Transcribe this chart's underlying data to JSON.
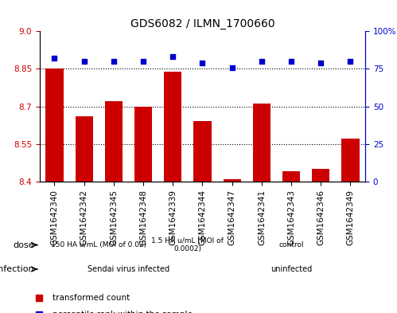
{
  "title": "GDS6082 / ILMN_1700660",
  "samples": [
    "GSM1642340",
    "GSM1642342",
    "GSM1642345",
    "GSM1642348",
    "GSM1642339",
    "GSM1642344",
    "GSM1642347",
    "GSM1642341",
    "GSM1642343",
    "GSM1642346",
    "GSM1642349"
  ],
  "bar_values": [
    8.85,
    8.66,
    8.72,
    8.7,
    8.84,
    8.64,
    8.41,
    8.71,
    8.44,
    8.45,
    8.57
  ],
  "percentile_values": [
    82,
    80,
    80,
    80,
    83,
    79,
    76,
    80,
    80,
    79,
    80
  ],
  "bar_color": "#cc0000",
  "dot_color": "#0000cc",
  "ylim_left": [
    8.4,
    9.0
  ],
  "ylim_right": [
    0,
    100
  ],
  "yticks_left": [
    8.4,
    8.55,
    8.7,
    8.85,
    9.0
  ],
  "yticks_right": [
    0,
    25,
    50,
    75,
    100
  ],
  "yticklabels_right": [
    "0",
    "25",
    "50",
    "75",
    "100%"
  ],
  "dose_groups": [
    {
      "label": "150 HA u/mL (MOI of 0.02)",
      "start": 0,
      "end": 4,
      "color": "#ccffcc"
    },
    {
      "label": "1.5 HA u/mL (MOI of\n0.0002)",
      "start": 4,
      "end": 6,
      "color": "#ccffcc"
    },
    {
      "label": "control",
      "start": 6,
      "end": 11,
      "color": "#66ff66"
    }
  ],
  "infection_groups": [
    {
      "label": "Sendai virus infected",
      "start": 0,
      "end": 6,
      "color": "#ffaaff"
    },
    {
      "label": "uninfected",
      "start": 6,
      "end": 11,
      "color": "#ff66ff"
    }
  ],
  "bg_color": "#ffffff",
  "grid_color": "#000000",
  "tick_label_fontsize": 7.5,
  "bar_width": 0.6
}
